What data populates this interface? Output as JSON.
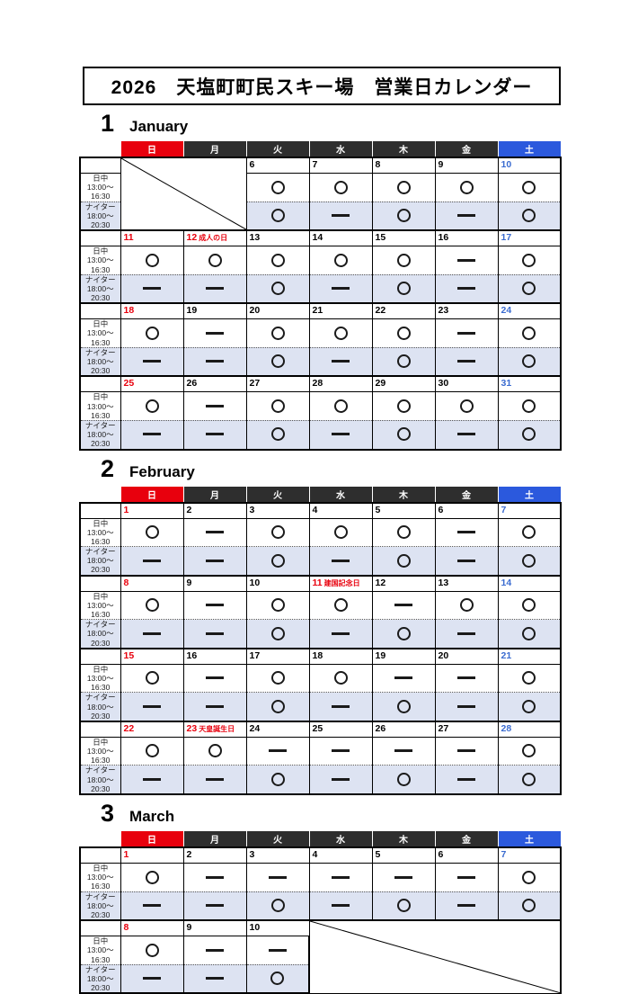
{
  "title": "2026　天塩町町民スキー場　営業日カレンダー",
  "weekday_headers": [
    "日",
    "月",
    "火",
    "水",
    "木",
    "金",
    "土"
  ],
  "row_labels": {
    "day_name": "日中",
    "day_time_from": "13:00～",
    "day_time_to": "16:30",
    "night_name": "ナイター",
    "night_time_from": "18:00～",
    "night_time_to": "20:30"
  },
  "legend": {
    "open": "○",
    "closed": "—"
  },
  "colors": {
    "sunday_red": "#e8000d",
    "weekday_header": "#2e2e2e",
    "saturday_blue": "#2b59dd",
    "saturday_date": "#3a6bd0",
    "night_row_bg": "#dde3f2"
  },
  "months": [
    {
      "number": "1",
      "name": "January",
      "weeks": [
        {
          "diagonal": {
            "position": "start",
            "span": 2
          },
          "days": [
            {
              "date": "6",
              "dc": "wd",
              "day": "open",
              "night": "open"
            },
            {
              "date": "7",
              "dc": "wd",
              "day": "open",
              "night": "closed"
            },
            {
              "date": "8",
              "dc": "wd",
              "day": "open",
              "night": "open"
            },
            {
              "date": "9",
              "dc": "wd",
              "day": "open",
              "night": "closed"
            },
            {
              "date": "10",
              "dc": "sat",
              "day": "open",
              "night": "open"
            }
          ]
        },
        {
          "days": [
            {
              "date": "11",
              "dc": "sun",
              "day": "open",
              "night": "closed"
            },
            {
              "date": "12",
              "dc": "sun",
              "holiday": "成人の日",
              "day": "open",
              "night": "closed"
            },
            {
              "date": "13",
              "dc": "wd",
              "day": "open",
              "night": "open"
            },
            {
              "date": "14",
              "dc": "wd",
              "day": "open",
              "night": "closed"
            },
            {
              "date": "15",
              "dc": "wd",
              "day": "open",
              "night": "open"
            },
            {
              "date": "16",
              "dc": "wd",
              "day": "closed",
              "night": "closed"
            },
            {
              "date": "17",
              "dc": "sat",
              "day": "open",
              "night": "open"
            }
          ]
        },
        {
          "days": [
            {
              "date": "18",
              "dc": "sun",
              "day": "open",
              "night": "closed"
            },
            {
              "date": "19",
              "dc": "wd",
              "day": "closed",
              "night": "closed"
            },
            {
              "date": "20",
              "dc": "wd",
              "day": "open",
              "night": "open"
            },
            {
              "date": "21",
              "dc": "wd",
              "day": "open",
              "night": "closed"
            },
            {
              "date": "22",
              "dc": "wd",
              "day": "open",
              "night": "open"
            },
            {
              "date": "23",
              "dc": "wd",
              "day": "closed",
              "night": "closed"
            },
            {
              "date": "24",
              "dc": "sat",
              "day": "open",
              "night": "open"
            }
          ]
        },
        {
          "days": [
            {
              "date": "25",
              "dc": "sun",
              "day": "open",
              "night": "closed"
            },
            {
              "date": "26",
              "dc": "wd",
              "day": "closed",
              "night": "closed"
            },
            {
              "date": "27",
              "dc": "wd",
              "day": "open",
              "night": "open"
            },
            {
              "date": "28",
              "dc": "wd",
              "day": "open",
              "night": "closed"
            },
            {
              "date": "29",
              "dc": "wd",
              "day": "open",
              "night": "open"
            },
            {
              "date": "30",
              "dc": "wd",
              "day": "open",
              "night": "closed"
            },
            {
              "date": "31",
              "dc": "sat",
              "day": "open",
              "night": "open"
            }
          ]
        }
      ]
    },
    {
      "number": "2",
      "name": "February",
      "weeks": [
        {
          "days": [
            {
              "date": "1",
              "dc": "sun",
              "day": "open",
              "night": "closed"
            },
            {
              "date": "2",
              "dc": "wd",
              "day": "closed",
              "night": "closed"
            },
            {
              "date": "3",
              "dc": "wd",
              "day": "open",
              "night": "open"
            },
            {
              "date": "4",
              "dc": "wd",
              "day": "open",
              "night": "closed"
            },
            {
              "date": "5",
              "dc": "wd",
              "day": "open",
              "night": "open"
            },
            {
              "date": "6",
              "dc": "wd",
              "day": "closed",
              "night": "closed"
            },
            {
              "date": "7",
              "dc": "sat",
              "day": "open",
              "night": "open"
            }
          ]
        },
        {
          "days": [
            {
              "date": "8",
              "dc": "sun",
              "day": "open",
              "night": "closed"
            },
            {
              "date": "9",
              "dc": "wd",
              "day": "closed",
              "night": "closed"
            },
            {
              "date": "10",
              "dc": "wd",
              "day": "open",
              "night": "open"
            },
            {
              "date": "11",
              "dc": "sun",
              "holiday": "建国記念日",
              "day": "open",
              "night": "closed"
            },
            {
              "date": "12",
              "dc": "wd",
              "day": "closed",
              "night": "open"
            },
            {
              "date": "13",
              "dc": "wd",
              "day": "open",
              "night": "closed"
            },
            {
              "date": "14",
              "dc": "sat",
              "day": "open",
              "night": "open"
            }
          ]
        },
        {
          "days": [
            {
              "date": "15",
              "dc": "sun",
              "day": "open",
              "night": "closed"
            },
            {
              "date": "16",
              "dc": "wd",
              "day": "closed",
              "night": "closed"
            },
            {
              "date": "17",
              "dc": "wd",
              "day": "open",
              "night": "open"
            },
            {
              "date": "18",
              "dc": "wd",
              "day": "open",
              "night": "closed"
            },
            {
              "date": "19",
              "dc": "wd",
              "day": "closed",
              "night": "open"
            },
            {
              "date": "20",
              "dc": "wd",
              "day": "closed",
              "night": "closed"
            },
            {
              "date": "21",
              "dc": "sat",
              "day": "open",
              "night": "open"
            }
          ]
        },
        {
          "days": [
            {
              "date": "22",
              "dc": "sun",
              "day": "open",
              "night": "closed"
            },
            {
              "date": "23",
              "dc": "sun",
              "holiday": "天皇誕生日",
              "day": "open",
              "night": "closed"
            },
            {
              "date": "24",
              "dc": "wd",
              "day": "closed",
              "night": "open"
            },
            {
              "date": "25",
              "dc": "wd",
              "day": "closed",
              "night": "closed"
            },
            {
              "date": "26",
              "dc": "wd",
              "day": "closed",
              "night": "open"
            },
            {
              "date": "27",
              "dc": "wd",
              "day": "closed",
              "night": "closed"
            },
            {
              "date": "28",
              "dc": "sat",
              "day": "open",
              "night": "open"
            }
          ]
        }
      ]
    },
    {
      "number": "3",
      "name": "March",
      "weeks": [
        {
          "days": [
            {
              "date": "1",
              "dc": "sun",
              "day": "open",
              "night": "closed"
            },
            {
              "date": "2",
              "dc": "wd",
              "day": "closed",
              "night": "closed"
            },
            {
              "date": "3",
              "dc": "wd",
              "day": "closed",
              "night": "open"
            },
            {
              "date": "4",
              "dc": "wd",
              "day": "closed",
              "night": "closed"
            },
            {
              "date": "5",
              "dc": "wd",
              "day": "closed",
              "night": "open"
            },
            {
              "date": "6",
              "dc": "wd",
              "day": "closed",
              "night": "closed"
            },
            {
              "date": "7",
              "dc": "sat",
              "day": "open",
              "night": "open"
            }
          ]
        },
        {
          "diagonal": {
            "position": "end",
            "span": 4
          },
          "days": [
            {
              "date": "8",
              "dc": "sun",
              "day": "open",
              "night": "closed"
            },
            {
              "date": "9",
              "dc": "wd",
              "day": "closed",
              "night": "closed"
            },
            {
              "date": "10",
              "dc": "wd",
              "day": "closed",
              "night": "open"
            }
          ]
        }
      ]
    }
  ]
}
